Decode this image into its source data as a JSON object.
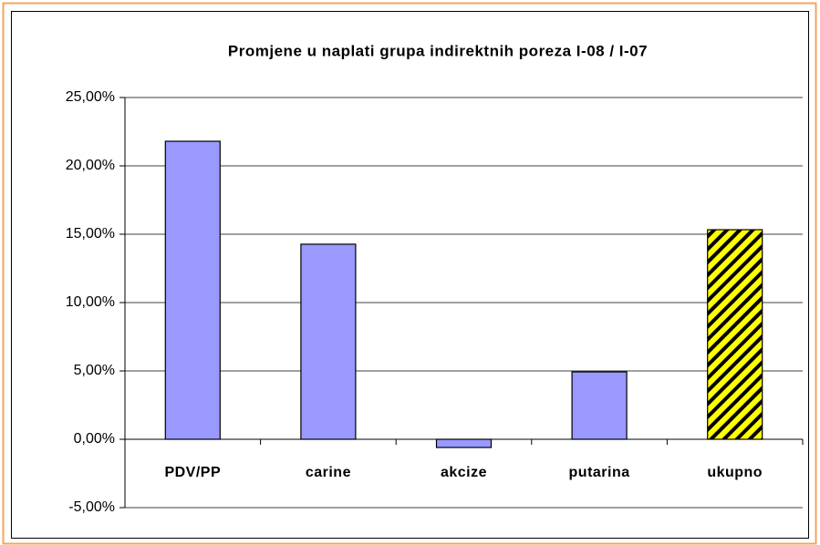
{
  "chart_data": {
    "type": "bar",
    "title": "Promjene u naplati grupa indirektnih poreza I-08 / I-07",
    "categories": [
      "PDV/PP",
      "carine",
      "akcize",
      "putarina",
      "ukupno"
    ],
    "values": [
      21.8,
      14.27,
      -0.6,
      4.93,
      15.33
    ],
    "colors": [
      "#9999ff",
      "#9999ff",
      "#9999ff",
      "#9999ff",
      "#ffff00"
    ],
    "hatched": [
      false,
      false,
      false,
      false,
      true
    ],
    "ylim": [
      -5,
      25
    ],
    "yticks": [
      {
        "value": -5,
        "label": "-5,00%"
      },
      {
        "value": 0,
        "label": "0,00%"
      },
      {
        "value": 5,
        "label": "5,00%"
      },
      {
        "value": 10,
        "label": "10,00%"
      },
      {
        "value": 15,
        "label": "15,00%"
      },
      {
        "value": 20,
        "label": "20,00%"
      },
      {
        "value": 25,
        "label": "25,00%"
      }
    ],
    "grid": true
  }
}
